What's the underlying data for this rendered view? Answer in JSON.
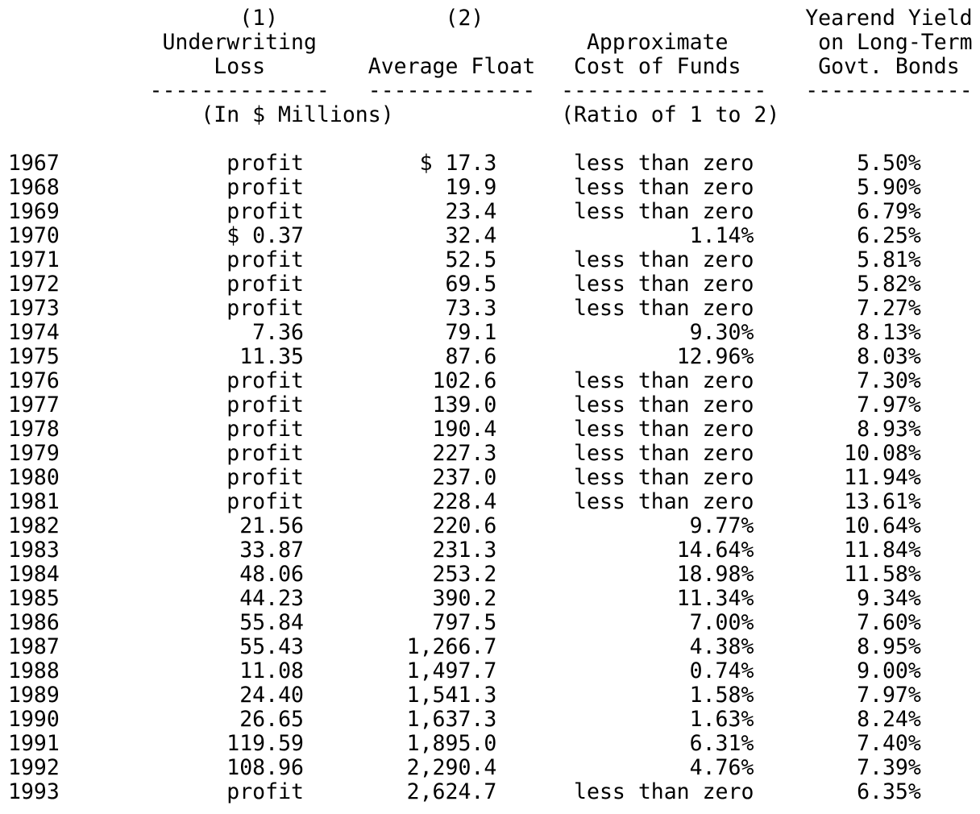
{
  "document": {
    "background": "#ffffff",
    "text_color": "#000000",
    "description_title": "Insurance float table 1967-1993"
  },
  "table": {
    "headers": {
      "col1_number": "(1)",
      "col2_number": "(2)",
      "col1_title_line1": "Underwriting",
      "col1_title_line2": "Loss",
      "col2_title": "Average Float",
      "col3_title_line1": "Approximate",
      "col3_title_line2": "Cost of Funds",
      "col4_title_line1": "Yearend Yield",
      "col4_title_line2": "on Long-Term",
      "col4_title_line3": "Govt. Bonds",
      "col1_underline": "--------------",
      "col2_underline": "-------------",
      "col3_underline": "----------------",
      "col4_underline": "-------------",
      "col12_units": "(In $ Millions)",
      "col3_units": "(Ratio of 1 to 2)"
    },
    "rows": [
      {
        "year": "1967",
        "underwriting_loss": "profit",
        "average_float": "$ 17.3",
        "cost_of_funds": "less than zero",
        "yearend_yield": "5.50%"
      },
      {
        "year": "1968",
        "underwriting_loss": "profit",
        "average_float": "19.9",
        "cost_of_funds": "less than zero",
        "yearend_yield": "5.90%"
      },
      {
        "year": "1969",
        "underwriting_loss": "profit",
        "average_float": "23.4",
        "cost_of_funds": "less than zero",
        "yearend_yield": "6.79%"
      },
      {
        "year": "1970",
        "underwriting_loss": "$ 0.37",
        "average_float": "32.4",
        "cost_of_funds": "1.14%",
        "yearend_yield": "6.25%"
      },
      {
        "year": "1971",
        "underwriting_loss": "profit",
        "average_float": "52.5",
        "cost_of_funds": "less than zero",
        "yearend_yield": "5.81%"
      },
      {
        "year": "1972",
        "underwriting_loss": "profit",
        "average_float": "69.5",
        "cost_of_funds": "less than zero",
        "yearend_yield": "5.82%"
      },
      {
        "year": "1973",
        "underwriting_loss": "profit",
        "average_float": "73.3",
        "cost_of_funds": "less than zero",
        "yearend_yield": "7.27%"
      },
      {
        "year": "1974",
        "underwriting_loss": "7.36",
        "average_float": "79.1",
        "cost_of_funds": "9.30%",
        "yearend_yield": "8.13%"
      },
      {
        "year": "1975",
        "underwriting_loss": "11.35",
        "average_float": "87.6",
        "cost_of_funds": "12.96%",
        "yearend_yield": "8.03%"
      },
      {
        "year": "1976",
        "underwriting_loss": "profit",
        "average_float": "102.6",
        "cost_of_funds": "less than zero",
        "yearend_yield": "7.30%"
      },
      {
        "year": "1977",
        "underwriting_loss": "profit",
        "average_float": "139.0",
        "cost_of_funds": "less than zero",
        "yearend_yield": "7.97%"
      },
      {
        "year": "1978",
        "underwriting_loss": "profit",
        "average_float": "190.4",
        "cost_of_funds": "less than zero",
        "yearend_yield": "8.93%"
      },
      {
        "year": "1979",
        "underwriting_loss": "profit",
        "average_float": "227.3",
        "cost_of_funds": "less than zero",
        "yearend_yield": "10.08%"
      },
      {
        "year": "1980",
        "underwriting_loss": "profit",
        "average_float": "237.0",
        "cost_of_funds": "less than zero",
        "yearend_yield": "11.94%"
      },
      {
        "year": "1981",
        "underwriting_loss": "profit",
        "average_float": "228.4",
        "cost_of_funds": "less than zero",
        "yearend_yield": "13.61%"
      },
      {
        "year": "1982",
        "underwriting_loss": "21.56",
        "average_float": "220.6",
        "cost_of_funds": "9.77%",
        "yearend_yield": "10.64%"
      },
      {
        "year": "1983",
        "underwriting_loss": "33.87",
        "average_float": "231.3",
        "cost_of_funds": "14.64%",
        "yearend_yield": "11.84%"
      },
      {
        "year": "1984",
        "underwriting_loss": "48.06",
        "average_float": "253.2",
        "cost_of_funds": "18.98%",
        "yearend_yield": "11.58%"
      },
      {
        "year": "1985",
        "underwriting_loss": "44.23",
        "average_float": "390.2",
        "cost_of_funds": "11.34%",
        "yearend_yield": "9.34%"
      },
      {
        "year": "1986",
        "underwriting_loss": "55.84",
        "average_float": "797.5",
        "cost_of_funds": "7.00%",
        "yearend_yield": "7.60%"
      },
      {
        "year": "1987",
        "underwriting_loss": "55.43",
        "average_float": "1,266.7",
        "cost_of_funds": "4.38%",
        "yearend_yield": "8.95%"
      },
      {
        "year": "1988",
        "underwriting_loss": "11.08",
        "average_float": "1,497.7",
        "cost_of_funds": "0.74%",
        "yearend_yield": "9.00%"
      },
      {
        "year": "1989",
        "underwriting_loss": "24.40",
        "average_float": "1,541.3",
        "cost_of_funds": "1.58%",
        "yearend_yield": "7.97%"
      },
      {
        "year": "1990",
        "underwriting_loss": "26.65",
        "average_float": "1,637.3",
        "cost_of_funds": "1.63%",
        "yearend_yield": "8.24%"
      },
      {
        "year": "1991",
        "underwriting_loss": "119.59",
        "average_float": "1,895.0",
        "cost_of_funds": "6.31%",
        "yearend_yield": "7.40%"
      },
      {
        "year": "1992",
        "underwriting_loss": "108.96",
        "average_float": "2,290.4",
        "cost_of_funds": "4.76%",
        "yearend_yield": "7.39%"
      },
      {
        "year": "1993",
        "underwriting_loss": "profit",
        "average_float": "2,624.7",
        "cost_of_funds": "less than zero",
        "yearend_yield": "6.35%"
      }
    ]
  }
}
